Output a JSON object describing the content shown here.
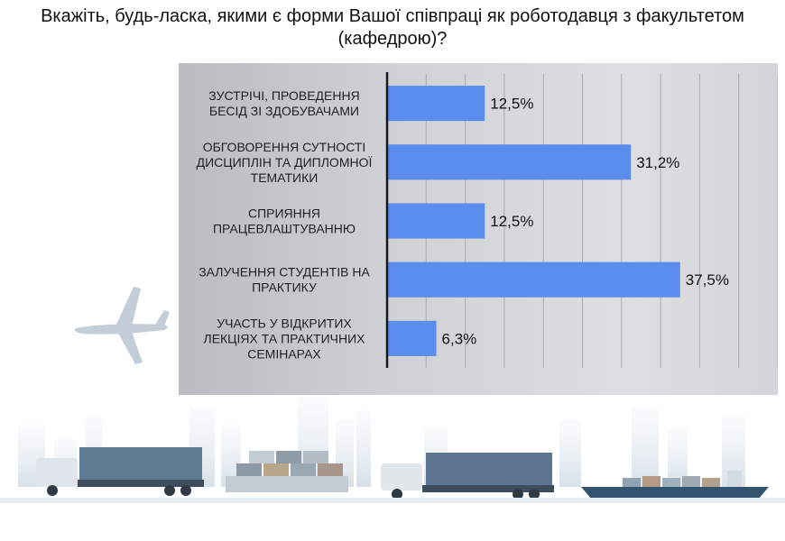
{
  "title": "Вкажіть, будь-ласка, якими є форми Вашої співпраці як роботодавця з факультетом (кафедрою)?",
  "colors": {
    "bar": "#5b8def",
    "axis": "#1a1a1a",
    "grid": "#a9acb0"
  },
  "chart_data": {
    "type": "bar",
    "orientation": "horizontal",
    "title": "Вкажіть, будь-ласка, якими є форми Вашої співпраці як роботодавця з факультетом (кафедрою)?",
    "categories": [
      [
        "ЗУСТРІЧІ, ПРОВЕДЕННЯ",
        "БЕСІД ЗІ ЗДОБУВАЧАМИ"
      ],
      [
        "ОБГОВОРЕННЯ СУТНОСТІ",
        "ДИСЦИПЛІН ТА ДИПЛОМНОЇ",
        "ТЕМАТИКИ"
      ],
      [
        "СПРИЯННЯ",
        "ПРАЦЕВЛАШТУВАННЮ"
      ],
      [
        "ЗАЛУЧЕННЯ СТУДЕНТІВ НА",
        "ПРАКТИКУ"
      ],
      [
        "УЧАСТЬ У ВІДКРИТИХ",
        "ЛЕКЦІЯХ ТА ПРАКТИЧНИХ",
        "СЕМІНАРАХ"
      ]
    ],
    "values": [
      12.5,
      31.2,
      12.5,
      37.5,
      6.3
    ],
    "value_labels": [
      "12,5%",
      "31,2%",
      "12,5%",
      "37,5%",
      "6,3%"
    ],
    "xlim": [
      0,
      50
    ],
    "grid": true,
    "legend": "none"
  }
}
